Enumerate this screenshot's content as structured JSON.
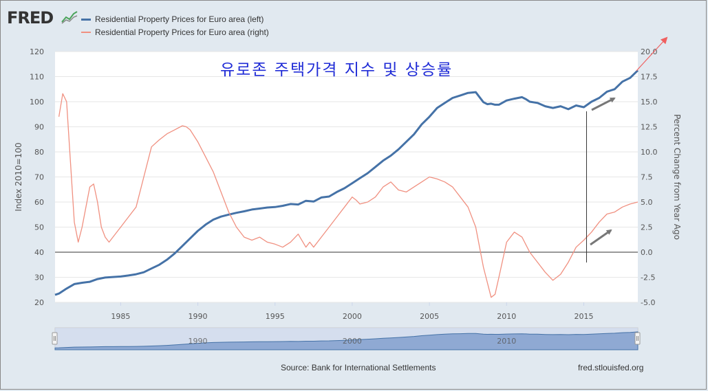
{
  "header": {
    "logo": "FRED",
    "legend": [
      {
        "label": "Residential Property Prices for Euro area (left)",
        "color": "#4572a7"
      },
      {
        "label": "Residential Property Prices for Euro area (right)",
        "color": "#f09080"
      }
    ]
  },
  "overlay_title": "유로존 주택가격 지수 및 상승률",
  "footer": {
    "source": "Source: Bank for International Settlements",
    "link": "fred.stlouisfed.org"
  },
  "navigator": {
    "tick_labels": [
      "1990",
      "2000",
      "2010"
    ]
  },
  "chart_data": {
    "type": "line",
    "title": "",
    "xlabel": "",
    "y_left_label": "Index 2010=100",
    "y_right_label": "Percent Change from Year Ago",
    "x_range": [
      1980.75,
      2018.5
    ],
    "y_left_range": [
      20,
      120
    ],
    "y_right_range": [
      -5,
      20
    ],
    "x_ticks": [
      "1985",
      "1990",
      "1995",
      "2000",
      "2005",
      "2010",
      "2015"
    ],
    "y_left_ticks": [
      "20",
      "30",
      "40",
      "50",
      "60",
      "70",
      "80",
      "90",
      "100",
      "110",
      "120"
    ],
    "y_right_ticks": [
      "-5.0",
      "-2.5",
      "0.0",
      "2.5",
      "5.0",
      "7.5",
      "10.0",
      "12.5",
      "15.0",
      "17.5",
      "20.0"
    ],
    "series": [
      {
        "name": "Residential Property Prices for Euro area (left)",
        "axis": "left",
        "color": "#4572a7",
        "x": [
          1980.75,
          1981.0,
          1981.5,
          1982.0,
          1982.5,
          1983.0,
          1983.5,
          1984.0,
          1984.5,
          1985.0,
          1985.5,
          1986.0,
          1986.5,
          1987.0,
          1987.5,
          1988.0,
          1988.5,
          1989.0,
          1989.5,
          1990.0,
          1990.5,
          1991.0,
          1991.5,
          1992.0,
          1992.5,
          1993.0,
          1993.5,
          1994.0,
          1994.5,
          1995.0,
          1995.5,
          1996.0,
          1996.5,
          1997.0,
          1997.5,
          1998.0,
          1998.5,
          1999.0,
          1999.5,
          2000.0,
          2000.5,
          2001.0,
          2001.5,
          2002.0,
          2002.5,
          2003.0,
          2003.5,
          2004.0,
          2004.5,
          2005.0,
          2005.5,
          2006.0,
          2006.5,
          2007.0,
          2007.5,
          2008.0,
          2008.25,
          2008.5,
          2008.75,
          2009.0,
          2009.25,
          2009.5,
          2010.0,
          2010.5,
          2011.0,
          2011.25,
          2011.5,
          2012.0,
          2012.5,
          2013.0,
          2013.5,
          2014.0,
          2014.5,
          2015.0,
          2015.5,
          2016.0,
          2016.5,
          2017.0,
          2017.5,
          2018.0,
          2018.5
        ],
        "values": [
          23,
          23.5,
          25.5,
          27.3,
          27.8,
          28.2,
          29.3,
          29.9,
          30.1,
          30.3,
          30.7,
          31.2,
          32.0,
          33.5,
          35.0,
          37.0,
          39.5,
          42.5,
          45.5,
          48.5,
          51.0,
          53.0,
          54.2,
          55.0,
          55.7,
          56.3,
          57.0,
          57.4,
          57.8,
          58.0,
          58.5,
          59.2,
          59.0,
          60.5,
          60.2,
          61.8,
          62.2,
          64.0,
          65.5,
          67.5,
          69.5,
          71.5,
          74.0,
          76.5,
          78.5,
          81.0,
          84.0,
          87.0,
          91.0,
          94.0,
          97.5,
          99.5,
          101.5,
          102.5,
          103.5,
          103.8,
          101.8,
          99.8,
          99.0,
          99.2,
          98.8,
          98.8,
          100.5,
          101.2,
          101.8,
          101.0,
          100.0,
          99.5,
          98.2,
          97.5,
          98.2,
          97.0,
          98.5,
          97.8,
          100.0,
          101.5,
          104.0,
          105.0,
          108.0,
          109.5,
          112.5
        ]
      },
      {
        "name": "Residential Property Prices for Euro area (right)",
        "axis": "right",
        "color": "#f09080",
        "x": [
          1981.0,
          1981.25,
          1981.5,
          1981.75,
          1982.0,
          1982.25,
          1982.5,
          1983.0,
          1983.25,
          1983.5,
          1983.75,
          1984.0,
          1984.25,
          1984.5,
          1985.0,
          1985.5,
          1986.0,
          1986.5,
          1987.0,
          1987.5,
          1988.0,
          1988.5,
          1989.0,
          1989.25,
          1989.5,
          1990.0,
          1990.5,
          1991.0,
          1991.5,
          1992.0,
          1992.5,
          1993.0,
          1993.5,
          1994.0,
          1994.5,
          1995.0,
          1995.5,
          1996.0,
          1996.5,
          1997.0,
          1997.25,
          1997.5,
          1998.0,
          1998.5,
          1999.0,
          1999.5,
          2000.0,
          2000.25,
          2000.5,
          2001.0,
          2001.5,
          2002.0,
          2002.5,
          2003.0,
          2003.5,
          2004.0,
          2004.5,
          2005.0,
          2005.5,
          2006.0,
          2006.5,
          2007.0,
          2007.5,
          2008.0,
          2008.5,
          2009.0,
          2009.25,
          2009.5,
          2010.0,
          2010.5,
          2011.0,
          2011.5,
          2012.0,
          2012.5,
          2013.0,
          2013.5,
          2014.0,
          2014.5,
          2015.0,
          2015.5,
          2016.0,
          2016.5,
          2017.0,
          2017.5,
          2018.0,
          2018.5
        ],
        "values": [
          13.5,
          15.8,
          15.0,
          9.0,
          3.0,
          1.0,
          2.5,
          6.5,
          6.8,
          5.0,
          2.5,
          1.5,
          1.0,
          1.5,
          2.5,
          3.5,
          4.5,
          7.5,
          10.5,
          11.2,
          11.8,
          12.2,
          12.6,
          12.5,
          12.2,
          11.0,
          9.5,
          8.0,
          6.0,
          4.0,
          2.5,
          1.5,
          1.2,
          1.5,
          1.0,
          0.8,
          0.5,
          1.0,
          1.8,
          0.5,
          1.0,
          0.5,
          1.5,
          2.5,
          3.5,
          4.5,
          5.5,
          5.2,
          4.8,
          5.0,
          5.5,
          6.5,
          7.0,
          6.2,
          6.0,
          6.5,
          7.0,
          7.5,
          7.3,
          7.0,
          6.5,
          5.5,
          4.5,
          2.5,
          -1.5,
          -4.5,
          -4.2,
          -2.5,
          1.0,
          2.0,
          1.5,
          0.0,
          -1.0,
          -2.0,
          -2.8,
          -2.2,
          -1.0,
          0.5,
          1.2,
          2.0,
          3.0,
          3.8,
          4.0,
          4.5,
          4.8,
          5.0
        ]
      }
    ],
    "zero_line_right_axis": 0.0,
    "annotation_marker_x": 2015.0
  }
}
